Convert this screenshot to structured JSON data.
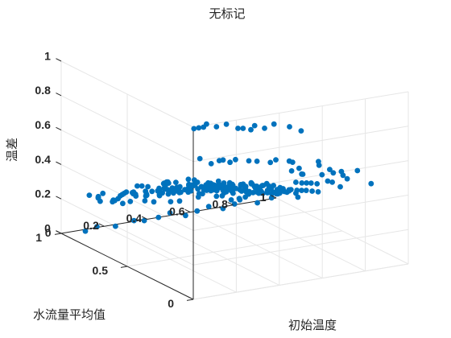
{
  "chart_data": {
    "type": "scatter",
    "title": "无标记",
    "xlabel": "初始温度",
    "ylabel": "水流量平均值",
    "zlabel": "温差",
    "xlim": [
      0,
      1
    ],
    "ylim": [
      0,
      1
    ],
    "zlim": [
      0,
      1
    ],
    "x_ticks": [
      "0",
      "0.2",
      "0.4",
      "0.6",
      "0.8",
      "1"
    ],
    "y_ticks": [
      "0",
      "0.5",
      "1"
    ],
    "z_ticks": [
      "0",
      "0.2",
      "0.4",
      "0.6",
      "0.8",
      "1"
    ],
    "grid": true,
    "color": "#0072BD",
    "points": [
      [
        0.06,
        0.02,
        0.98
      ],
      [
        0.05,
        0.04,
        0.97
      ],
      [
        0.08,
        0.03,
        0.99
      ],
      [
        0.04,
        0.06,
        0.96
      ],
      [
        0.12,
        0.02,
        0.97
      ],
      [
        0.16,
        0.01,
        0.98
      ],
      [
        0.22,
        0.02,
        0.94
      ],
      [
        0.25,
        0.03,
        0.93
      ],
      [
        0.28,
        0.02,
        0.92
      ],
      [
        0.31,
        0.04,
        0.93
      ],
      [
        0.35,
        0.03,
        0.91
      ],
      [
        0.4,
        0.04,
        0.92
      ],
      [
        0.46,
        0.02,
        0.9
      ],
      [
        0.52,
        0.03,
        0.86
      ],
      [
        0.08,
        0.08,
        0.77
      ],
      [
        0.12,
        0.06,
        0.74
      ],
      [
        0.17,
        0.08,
        0.74
      ],
      [
        0.2,
        0.1,
        0.73
      ],
      [
        0.22,
        0.08,
        0.72
      ],
      [
        0.27,
        0.12,
        0.71
      ],
      [
        0.32,
        0.1,
        0.7
      ],
      [
        0.37,
        0.12,
        0.68
      ],
      [
        0.42,
        0.1,
        0.67
      ],
      [
        0.47,
        0.14,
        0.66
      ],
      [
        0.52,
        0.12,
        0.65
      ],
      [
        0.56,
        0.16,
        0.62
      ],
      [
        0.66,
        0.1,
        0.55
      ],
      [
        0.7,
        0.08,
        0.56
      ],
      [
        0.75,
        0.1,
        0.55
      ],
      [
        0.8,
        0.06,
        0.56
      ],
      [
        0.58,
        0.2,
        0.55
      ],
      [
        0.62,
        0.18,
        0.53
      ],
      [
        0.95,
        0.2,
        0.4
      ],
      [
        0.85,
        0.25,
        0.45
      ],
      [
        0.8,
        0.35,
        0.48
      ],
      [
        0.88,
        0.4,
        0.42
      ],
      [
        0.9,
        0.3,
        0.4
      ],
      [
        0.75,
        0.4,
        0.42
      ],
      [
        0.92,
        0.55,
        0.4
      ],
      [
        0.83,
        0.55,
        0.38
      ],
      [
        0.05,
        0.3,
        0.55
      ],
      [
        0.03,
        0.25,
        0.58
      ],
      [
        0.1,
        0.35,
        0.52
      ],
      [
        0.12,
        0.3,
        0.48
      ],
      [
        0.15,
        0.4,
        0.45
      ],
      [
        0.06,
        0.45,
        0.42
      ],
      [
        0.04,
        0.5,
        0.4
      ],
      [
        0.2,
        0.55,
        0.42
      ],
      [
        0.22,
        0.48,
        0.4
      ],
      [
        0.28,
        0.52,
        0.38
      ],
      [
        0.3,
        0.45,
        0.36
      ],
      [
        0.35,
        0.5,
        0.35
      ],
      [
        0.38,
        0.4,
        0.37
      ],
      [
        0.42,
        0.45,
        0.36
      ],
      [
        0.45,
        0.38,
        0.34
      ],
      [
        0.5,
        0.42,
        0.33
      ],
      [
        0.55,
        0.4,
        0.35
      ],
      [
        0.6,
        0.45,
        0.32
      ],
      [
        0.58,
        0.35,
        0.36
      ],
      [
        0.62,
        0.38,
        0.34
      ],
      [
        0.66,
        0.42,
        0.32
      ],
      [
        0.68,
        0.33,
        0.35
      ],
      [
        0.72,
        0.38,
        0.3
      ],
      [
        0.25,
        0.6,
        0.4
      ],
      [
        0.3,
        0.62,
        0.38
      ],
      [
        0.35,
        0.58,
        0.37
      ],
      [
        0.4,
        0.62,
        0.36
      ],
      [
        0.45,
        0.58,
        0.35
      ],
      [
        0.5,
        0.6,
        0.33
      ],
      [
        0.55,
        0.62,
        0.32
      ],
      [
        0.6,
        0.58,
        0.31
      ],
      [
        0.65,
        0.62,
        0.3
      ],
      [
        0.2,
        0.35,
        0.48
      ],
      [
        0.25,
        0.4,
        0.46
      ],
      [
        0.3,
        0.36,
        0.44
      ],
      [
        0.35,
        0.32,
        0.43
      ],
      [
        0.4,
        0.3,
        0.44
      ],
      [
        0.45,
        0.28,
        0.42
      ],
      [
        0.5,
        0.3,
        0.41
      ],
      [
        0.55,
        0.28,
        0.4
      ],
      [
        0.18,
        0.28,
        0.52
      ],
      [
        0.22,
        0.25,
        0.5
      ],
      [
        0.26,
        0.28,
        0.49
      ],
      [
        0.32,
        0.24,
        0.48
      ],
      [
        0.36,
        0.22,
        0.47
      ],
      [
        0.42,
        0.2,
        0.46
      ],
      [
        0.48,
        0.22,
        0.45
      ],
      [
        0.52,
        0.2,
        0.44
      ],
      [
        0.15,
        0.5,
        0.38
      ],
      [
        0.18,
        0.55,
        0.36
      ],
      [
        0.24,
        0.58,
        0.34
      ],
      [
        0.28,
        0.65,
        0.33
      ],
      [
        0.32,
        0.68,
        0.32
      ],
      [
        0.38,
        0.66,
        0.31
      ],
      [
        0.42,
        0.7,
        0.3
      ],
      [
        0.48,
        0.68,
        0.29
      ],
      [
        0.1,
        0.6,
        0.36
      ],
      [
        0.12,
        0.65,
        0.34
      ],
      [
        0.16,
        0.62,
        0.33
      ],
      [
        0.2,
        0.68,
        0.31
      ],
      [
        0.25,
        0.72,
        0.3
      ],
      [
        0.3,
        0.75,
        0.28
      ],
      [
        0.35,
        0.72,
        0.27
      ],
      [
        0.4,
        0.78,
        0.26
      ],
      [
        0.45,
        0.75,
        0.25
      ],
      [
        0.5,
        0.78,
        0.24
      ],
      [
        0.55,
        0.72,
        0.26
      ],
      [
        0.6,
        0.7,
        0.25
      ],
      [
        0.65,
        0.68,
        0.27
      ],
      [
        0.7,
        0.66,
        0.26
      ],
      [
        0.72,
        0.6,
        0.28
      ],
      [
        0.76,
        0.58,
        0.27
      ],
      [
        0.1,
        0.2,
        0.6
      ],
      [
        0.14,
        0.22,
        0.58
      ],
      [
        0.18,
        0.18,
        0.57
      ],
      [
        0.24,
        0.2,
        0.56
      ],
      [
        0.28,
        0.18,
        0.55
      ],
      [
        0.33,
        0.16,
        0.54
      ],
      [
        0.38,
        0.18,
        0.53
      ],
      [
        0.44,
        0.16,
        0.52
      ],
      [
        0.2,
        0.42,
        0.42
      ],
      [
        0.26,
        0.45,
        0.41
      ],
      [
        0.34,
        0.42,
        0.4
      ],
      [
        0.44,
        0.48,
        0.38
      ],
      [
        0.48,
        0.5,
        0.37
      ],
      [
        0.54,
        0.52,
        0.35
      ],
      [
        0.58,
        0.5,
        0.36
      ],
      [
        0.64,
        0.52,
        0.33
      ],
      [
        0.08,
        0.4,
        0.46
      ],
      [
        0.12,
        0.45,
        0.44
      ],
      [
        0.16,
        0.48,
        0.43
      ],
      [
        0.06,
        0.55,
        0.4
      ],
      [
        0.1,
        0.7,
        0.32
      ],
      [
        0.14,
        0.75,
        0.3
      ],
      [
        0.18,
        0.8,
        0.28
      ],
      [
        0.22,
        0.82,
        0.26
      ],
      [
        0.3,
        0.85,
        0.24
      ],
      [
        0.36,
        0.82,
        0.23
      ],
      [
        0.42,
        0.85,
        0.22
      ],
      [
        0.48,
        0.82,
        0.21
      ],
      [
        0.54,
        0.8,
        0.22
      ],
      [
        0.6,
        0.82,
        0.2
      ],
      [
        0.66,
        0.78,
        0.22
      ],
      [
        0.7,
        0.75,
        0.21
      ],
      [
        0.74,
        0.7,
        0.23
      ],
      [
        0.78,
        0.68,
        0.22
      ],
      [
        0.82,
        0.7,
        0.2
      ],
      [
        0.86,
        0.72,
        0.19
      ],
      [
        0.78,
        0.8,
        0.18
      ],
      [
        0.72,
        0.85,
        0.17
      ],
      [
        0.65,
        0.88,
        0.16
      ],
      [
        0.58,
        0.9,
        0.15
      ],
      [
        0.4,
        0.35,
        0.4
      ],
      [
        0.46,
        0.33,
        0.39
      ],
      [
        0.52,
        0.35,
        0.38
      ],
      [
        0.56,
        0.45,
        0.37
      ],
      [
        0.62,
        0.48,
        0.35
      ],
      [
        0.68,
        0.5,
        0.33
      ],
      [
        0.7,
        0.45,
        0.31
      ],
      [
        0.74,
        0.48,
        0.3
      ],
      [
        0.34,
        0.55,
        0.38
      ],
      [
        0.38,
        0.52,
        0.37
      ],
      [
        0.44,
        0.55,
        0.36
      ],
      [
        0.5,
        0.55,
        0.34
      ],
      [
        0.54,
        0.58,
        0.33
      ],
      [
        0.58,
        0.65,
        0.3
      ],
      [
        0.62,
        0.65,
        0.29
      ],
      [
        0.66,
        0.58,
        0.29
      ],
      [
        0.28,
        0.3,
        0.47
      ],
      [
        0.32,
        0.32,
        0.46
      ],
      [
        0.36,
        0.36,
        0.42
      ],
      [
        0.4,
        0.4,
        0.4
      ],
      [
        0.44,
        0.42,
        0.38
      ],
      [
        0.48,
        0.38,
        0.38
      ],
      [
        0.52,
        0.45,
        0.36
      ],
      [
        0.56,
        0.35,
        0.37
      ],
      [
        0.24,
        0.5,
        0.4
      ],
      [
        0.28,
        0.58,
        0.37
      ],
      [
        0.32,
        0.55,
        0.36
      ],
      [
        0.36,
        0.62,
        0.35
      ],
      [
        0.4,
        0.55,
        0.34
      ],
      [
        0.46,
        0.62,
        0.33
      ],
      [
        0.52,
        0.65,
        0.31
      ],
      [
        0.56,
        0.68,
        0.3
      ],
      [
        0.15,
        0.85,
        0.22
      ],
      [
        0.12,
        0.9,
        0.2
      ],
      [
        0.2,
        0.92,
        0.18
      ],
      [
        0.26,
        0.9,
        0.17
      ],
      [
        0.34,
        0.92,
        0.15
      ],
      [
        0.4,
        0.95,
        0.12
      ],
      [
        0.46,
        0.92,
        0.12
      ],
      [
        0.52,
        0.95,
        0.1
      ],
      [
        0.6,
        0.2,
        0.48
      ],
      [
        0.64,
        0.22,
        0.46
      ],
      [
        0.68,
        0.25,
        0.44
      ],
      [
        0.72,
        0.28,
        0.42
      ],
      [
        0.76,
        0.3,
        0.4
      ],
      [
        0.8,
        0.25,
        0.42
      ],
      [
        0.84,
        0.35,
        0.38
      ],
      [
        0.88,
        0.32,
        0.35
      ],
      [
        0.05,
        0.8,
        0.28
      ],
      [
        0.08,
        0.85,
        0.25
      ],
      [
        0.1,
        0.95,
        0.22
      ],
      [
        0.16,
        0.98,
        0.18
      ],
      [
        0.22,
        0.97,
        0.15
      ],
      [
        0.28,
        0.99,
        0.12
      ],
      [
        0.1,
        0.98,
        0.0
      ],
      [
        0.16,
        0.99,
        0.01
      ],
      [
        0.24,
        0.98,
        0.0
      ],
      [
        0.32,
        0.97,
        0.02
      ],
      [
        0.38,
        0.99,
        0.0
      ],
      [
        0.44,
        0.98,
        0.01
      ],
      [
        0.5,
        0.99,
        0.02
      ],
      [
        0.56,
        0.97,
        0.0
      ],
      [
        0.62,
        0.98,
        0.01
      ],
      [
        0.68,
        0.99,
        0.02
      ],
      [
        0.74,
        0.98,
        0.0
      ],
      [
        0.8,
        0.99,
        0.01
      ],
      [
        0.9,
        0.98,
        0.0
      ],
      [
        0.96,
        0.97,
        0.02
      ],
      [
        0.2,
        0.15,
        0.5
      ],
      [
        0.25,
        0.12,
        0.48
      ],
      [
        0.3,
        0.14,
        0.47
      ],
      [
        0.35,
        0.28,
        0.45
      ],
      [
        0.42,
        0.26,
        0.44
      ],
      [
        0.48,
        0.26,
        0.42
      ],
      [
        0.54,
        0.24,
        0.41
      ],
      [
        0.58,
        0.28,
        0.4
      ],
      [
        0.62,
        0.3,
        0.38
      ],
      [
        0.66,
        0.35,
        0.36
      ],
      [
        0.7,
        0.4,
        0.34
      ],
      [
        0.74,
        0.42,
        0.32
      ],
      [
        0.78,
        0.45,
        0.3
      ],
      [
        0.82,
        0.48,
        0.28
      ],
      [
        0.86,
        0.5,
        0.26
      ],
      [
        0.9,
        0.52,
        0.24
      ],
      [
        0.3,
        0.7,
        0.33
      ],
      [
        0.34,
        0.75,
        0.32
      ],
      [
        0.38,
        0.72,
        0.3
      ],
      [
        0.44,
        0.75,
        0.29
      ],
      [
        0.48,
        0.72,
        0.28
      ],
      [
        0.52,
        0.75,
        0.27
      ],
      [
        0.56,
        0.78,
        0.26
      ],
      [
        0.6,
        0.75,
        0.25
      ],
      [
        0.08,
        0.7,
        0.3
      ],
      [
        0.04,
        0.75,
        0.32
      ],
      [
        0.06,
        0.65,
        0.34
      ],
      [
        0.2,
        0.75,
        0.33
      ],
      [
        0.24,
        0.78,
        0.31
      ],
      [
        0.28,
        0.8,
        0.29
      ],
      [
        0.32,
        0.78,
        0.28
      ],
      [
        0.36,
        0.8,
        0.26
      ]
    ]
  }
}
